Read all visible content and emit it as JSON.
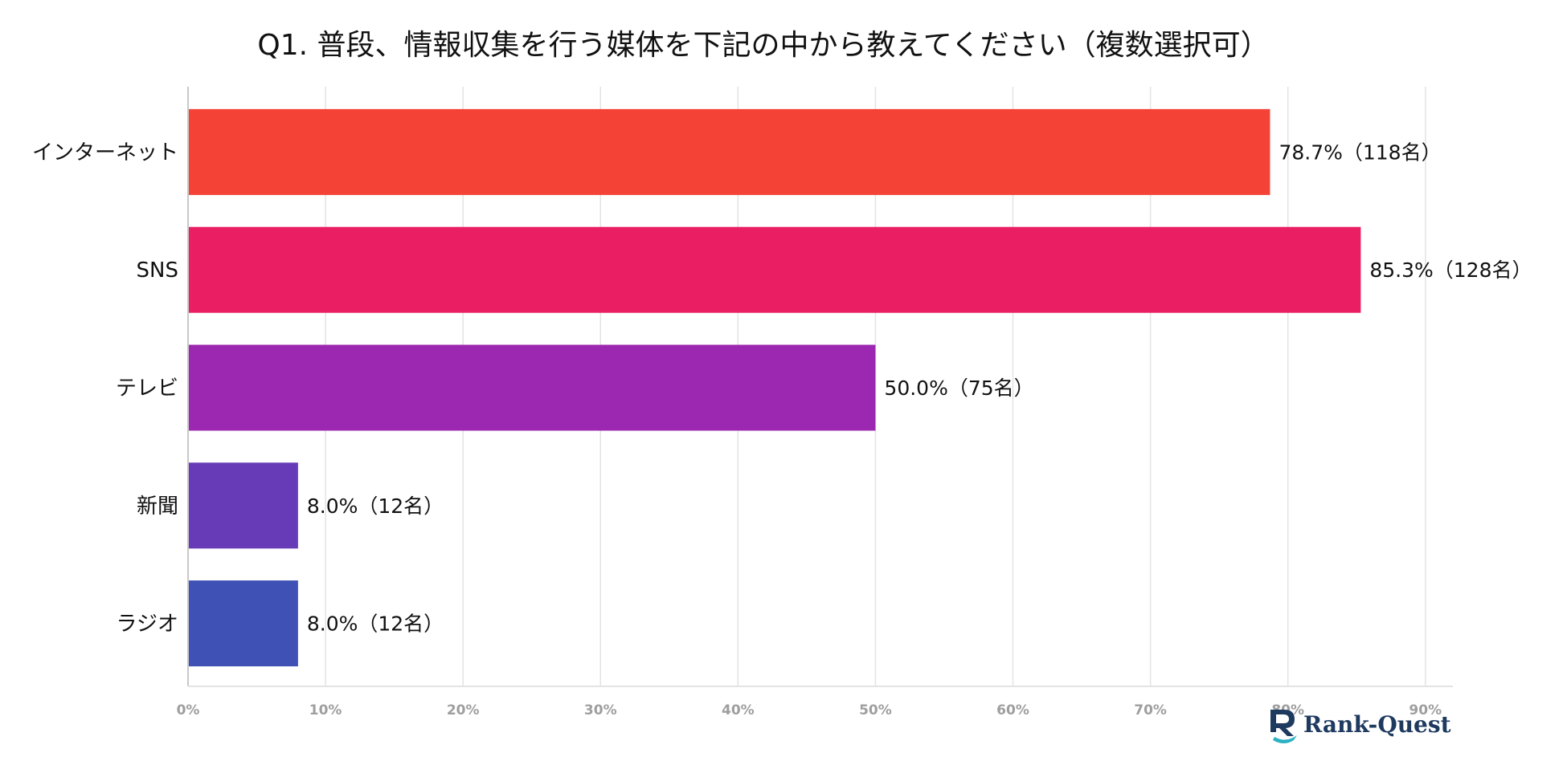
{
  "chart_data": {
    "type": "bar",
    "orientation": "horizontal",
    "title": "Q1. 普段、情報収集を行う媒体を下記の中から教えてください（複数選択可）",
    "categories": [
      "インターネット",
      "SNS",
      "テレビ",
      "新聞",
      "ラジオ"
    ],
    "values": [
      78.7,
      85.3,
      50.0,
      8.0,
      8.0
    ],
    "value_labels": [
      "78.7%（118名）",
      "85.3%（128名）",
      "50.0%（75名）",
      "8.0%（12名）",
      "8.0%（12名）"
    ],
    "colors": [
      "#f44336",
      "#e91e63",
      "#9c27b0",
      "#673ab7",
      "#3f51b5"
    ],
    "xlim": [
      0,
      92
    ],
    "xticks": [
      0,
      10,
      20,
      30,
      40,
      50,
      60,
      70,
      80,
      90
    ],
    "xtick_labels": [
      "0%",
      "10%",
      "20%",
      "30%",
      "40%",
      "50%",
      "60%",
      "70%",
      "80%",
      "90%"
    ],
    "xlabel": "",
    "ylabel": "",
    "grid": true
  },
  "logo": {
    "text_rank": "Rank-",
    "text_quest": "Quest",
    "color_dark": "#1f3a5f",
    "color_accent": "#2bb0c4"
  }
}
